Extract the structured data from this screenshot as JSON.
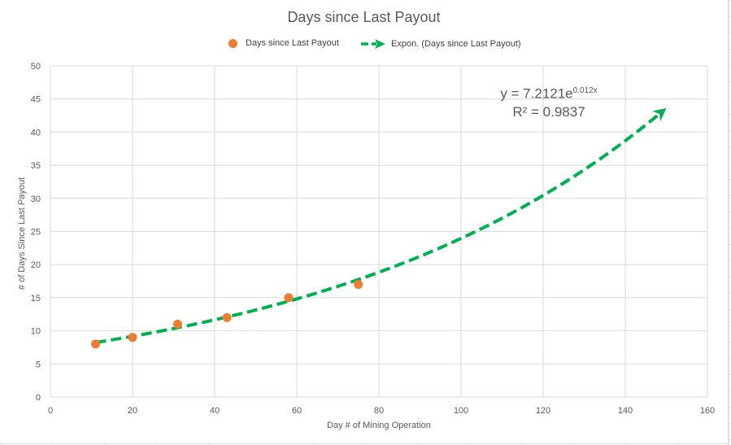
{
  "chart_data": {
    "type": "scatter",
    "title": "Days since Last Payout",
    "xlabel": "Day # of Mining Operation",
    "ylabel": "# of Days Since Last Payout",
    "xlim": [
      0,
      160
    ],
    "ylim": [
      0,
      50
    ],
    "x_ticks": [
      0,
      20,
      40,
      60,
      80,
      100,
      120,
      140,
      160
    ],
    "y_ticks": [
      0,
      5,
      10,
      15,
      20,
      25,
      30,
      35,
      40,
      45,
      50
    ],
    "grid": true,
    "legend_position": "top",
    "series": [
      {
        "name": "Days since Last Payout",
        "color": "#ED7D31",
        "marker": "circle",
        "x": [
          11,
          20,
          31,
          43,
          58,
          75
        ],
        "y": [
          8,
          9,
          11,
          12,
          15,
          17
        ]
      }
    ],
    "trendline": {
      "name": "Expon. (Days since Last Payout)",
      "color": "#00B050",
      "style": "dashed-arrow",
      "type": "exponential",
      "coefficient": 7.2121,
      "rate": 0.012,
      "x_range": [
        11,
        150
      ],
      "equation_prefix": "y = 7.2121e",
      "equation_exponent": "0.012x",
      "r_squared": "R² = 0.9837"
    }
  }
}
